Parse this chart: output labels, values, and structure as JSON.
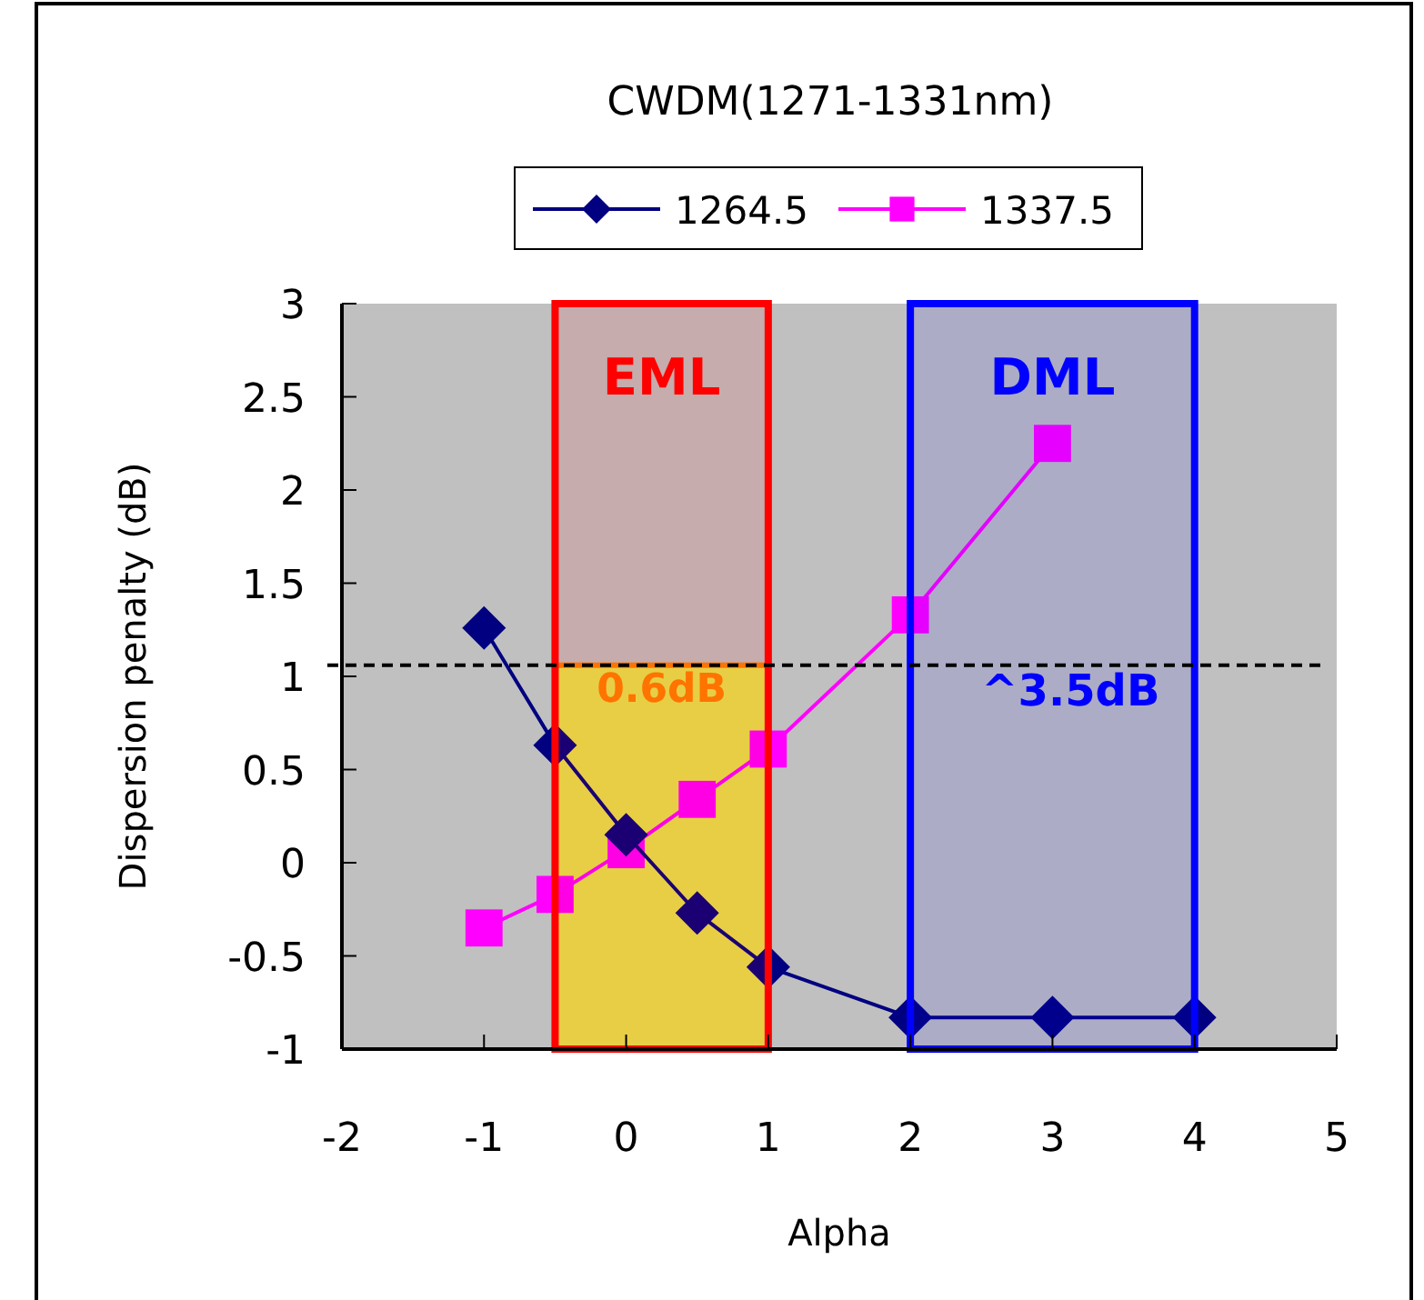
{
  "chart_data": {
    "type": "line",
    "title": "CWDM(1271-1331nm)",
    "xlabel": "Alpha",
    "ylabel": "Dispersion penalty (dB)",
    "series": [
      {
        "name": "1264.5",
        "color": "#000080",
        "marker": "diamond",
        "x": [
          -1,
          -0.5,
          0,
          0.5,
          1,
          2,
          3,
          4
        ],
        "values": [
          1.26,
          0.63,
          0.15,
          -0.27,
          -0.56,
          -0.83,
          -0.83,
          -0.83
        ]
      },
      {
        "name": "1337.5",
        "color": "#ff00ff",
        "marker": "square",
        "x": [
          -1,
          -0.5,
          0,
          0.5,
          1,
          2,
          3
        ],
        "values": [
          -0.35,
          -0.17,
          0.07,
          0.34,
          0.61,
          1.33,
          2.25
        ]
      }
    ],
    "xlim": [
      -2,
      5
    ],
    "xticks": [
      -2,
      -1,
      0,
      1,
      2,
      3,
      4,
      5
    ],
    "ylim": [
      -1,
      3
    ],
    "yticks": [
      -1,
      -0.5,
      0,
      0.5,
      1,
      1.5,
      2,
      2.5,
      3
    ],
    "ref_lines": [
      {
        "axis": "y",
        "value": 1.06,
        "color": "#000000",
        "line_style": "dashed"
      }
    ],
    "bands": [
      {
        "axis": "x",
        "from": -0.5,
        "to": 1,
        "label": "EML",
        "color": "#ff0000"
      },
      {
        "axis": "x",
        "from": 2,
        "to": 4,
        "label": "DML",
        "color": "#0000ff"
      },
      {
        "axis": "x",
        "from": -0.5,
        "to": 1,
        "label": "0.6dB",
        "color": "#ffff00"
      }
    ],
    "annotations": [
      {
        "text": "^3.5dB",
        "x": 3,
        "y": 1.06
      }
    ],
    "grid": false,
    "legend": "top",
    "line_style": "solid"
  }
}
